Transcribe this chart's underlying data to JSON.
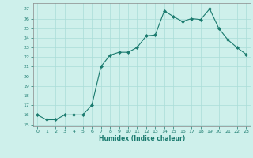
{
  "x": [
    0,
    1,
    2,
    3,
    4,
    5,
    6,
    7,
    8,
    9,
    10,
    11,
    12,
    13,
    14,
    15,
    16,
    17,
    18,
    19,
    20,
    21,
    22,
    23
  ],
  "y": [
    16.0,
    15.5,
    15.5,
    16.0,
    16.0,
    16.0,
    17.0,
    21.0,
    22.2,
    22.5,
    22.5,
    23.0,
    24.2,
    24.3,
    26.8,
    26.2,
    25.7,
    26.0,
    25.9,
    27.0,
    25.0,
    23.8,
    23.0,
    22.3
  ],
  "xlabel": "Humidex (Indice chaleur)",
  "xlim": [
    -0.5,
    23.5
  ],
  "ylim": [
    14.8,
    27.6
  ],
  "yticks": [
    15,
    16,
    17,
    18,
    19,
    20,
    21,
    22,
    23,
    24,
    25,
    26,
    27
  ],
  "xticks": [
    0,
    1,
    2,
    3,
    4,
    5,
    6,
    7,
    8,
    9,
    10,
    11,
    12,
    13,
    14,
    15,
    16,
    17,
    18,
    19,
    20,
    21,
    22,
    23
  ],
  "line_color": "#1a7a6e",
  "marker_color": "#1a7a6e",
  "bg_color": "#cef0eb",
  "grid_color": "#aaddd8",
  "label_color": "#1a7a6e",
  "tick_color": "#1a7a6e",
  "spine_color": "#888888"
}
